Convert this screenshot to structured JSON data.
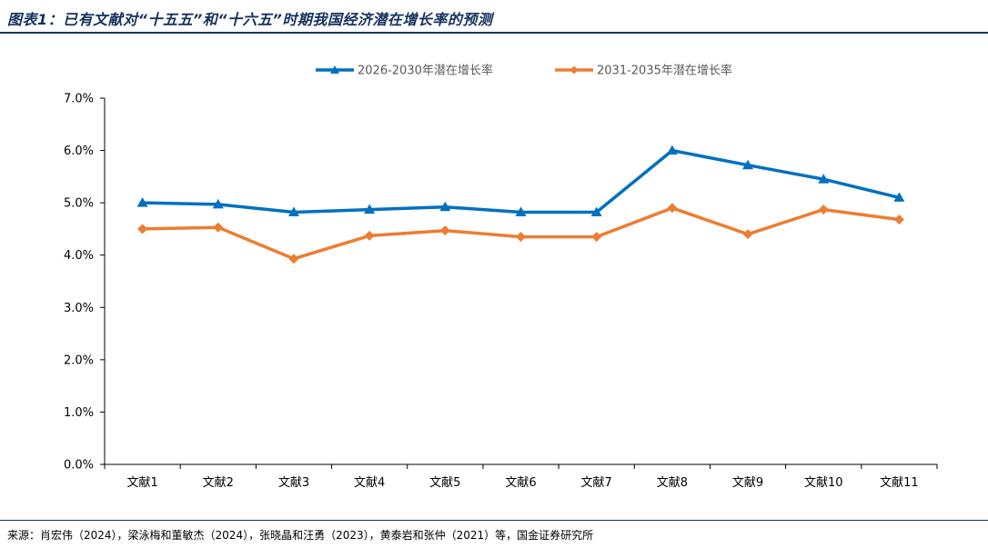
{
  "figure": {
    "title": "图表1：已有文献对“十五五”和“十六五”时期我国经济潜在增长率的预测",
    "source": "来源：肖宏伟（2024），梁泳梅和董敏杰（2024），张晓晶和汪勇（2023），黄泰岩和张仲（2021）等，国金证券研究所"
  },
  "colors": {
    "accent": "#14325c",
    "series1": "#0070C0",
    "series2": "#ED7D31",
    "axis": "#000000"
  },
  "chart_data": {
    "type": "line",
    "title": "",
    "xlabel": "",
    "ylabel": "",
    "categories": [
      "文献1",
      "文献2",
      "文献3",
      "文献4",
      "文献5",
      "文献6",
      "文献7",
      "文献8",
      "文献9",
      "文献10",
      "文献11"
    ],
    "series": [
      {
        "name": "2026-2030年潜在增长率",
        "marker": "triangle",
        "color": "#0070C0",
        "values": [
          5.0,
          4.97,
          4.82,
          4.87,
          4.92,
          4.82,
          4.82,
          6.0,
          5.72,
          5.45,
          5.1
        ]
      },
      {
        "name": "2031-2035年潜在增长率",
        "marker": "diamond",
        "color": "#ED7D31",
        "values": [
          4.5,
          4.53,
          3.93,
          4.37,
          4.47,
          4.35,
          4.35,
          4.9,
          4.4,
          4.87,
          4.68
        ]
      }
    ],
    "ylim": [
      0,
      7
    ],
    "yticks": [
      "0.0%",
      "1.0%",
      "2.0%",
      "3.0%",
      "4.0%",
      "5.0%",
      "6.0%",
      "7.0%"
    ],
    "legend_position": "top",
    "grid": false
  }
}
